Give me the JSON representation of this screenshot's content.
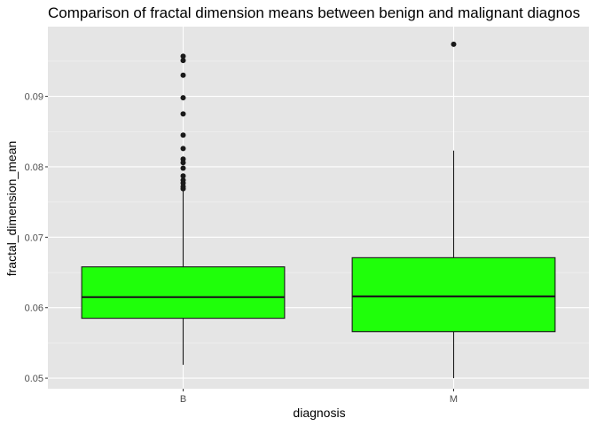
{
  "chart_data": {
    "type": "boxplot",
    "title": "Comparison of fractal dimension means between benign and malignant diagnos",
    "xlabel": "diagnosis",
    "ylabel": "fractal_dimension_mean",
    "categories": [
      "B",
      "M"
    ],
    "ylim": [
      0.0485,
      0.0999
    ],
    "y_ticks": [
      0.05,
      0.06,
      0.07,
      0.08,
      0.09
    ],
    "y_tick_labels": [
      "0.05",
      "0.06",
      "0.07",
      "0.08",
      "0.09"
    ],
    "grid": true,
    "legend": "none",
    "boxes": [
      {
        "category": "B",
        "whisker_low": 0.0519,
        "q1": 0.0585,
        "median": 0.0615,
        "q3": 0.0658,
        "whisker_high": 0.0767,
        "outliers": [
          0.0957,
          0.0951,
          0.093,
          0.0898,
          0.0875,
          0.0845,
          0.0826,
          0.0811,
          0.0806,
          0.0798,
          0.0787,
          0.0781,
          0.0777,
          0.0772,
          0.0769
        ]
      },
      {
        "category": "M",
        "whisker_low": 0.05,
        "q1": 0.0566,
        "median": 0.0616,
        "q3": 0.0671,
        "whisker_high": 0.0823,
        "outliers": [
          0.0974
        ]
      }
    ],
    "colors": {
      "box_fill": "#1fff0a",
      "box_stroke": "#1a1a1a",
      "outlier": "#1a1a1a",
      "panel_bg": "#e5e5e5",
      "grid_major": "#ffffff",
      "grid_minor": "#f2f2f2"
    }
  }
}
